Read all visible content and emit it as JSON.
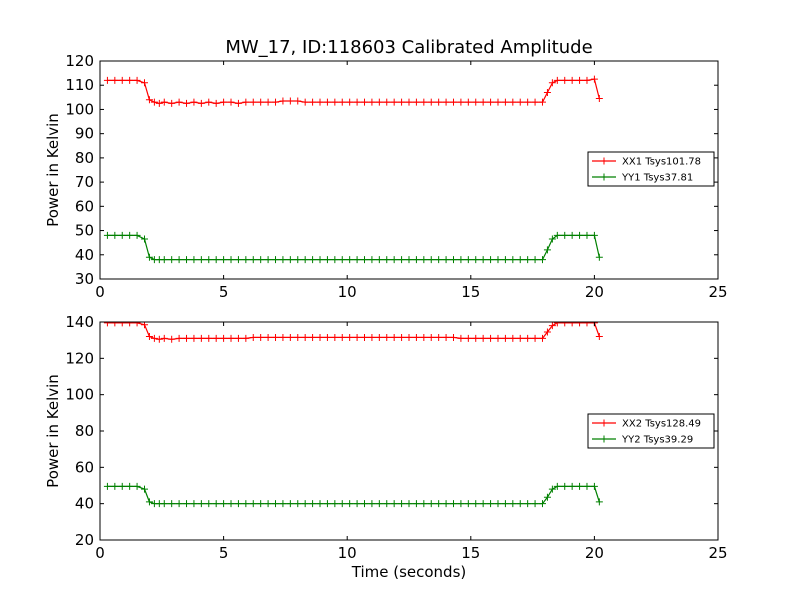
{
  "chart_data": [
    {
      "type": "line",
      "title": "MW_17, ID:118603 Calibrated Amplitude",
      "xlabel": "",
      "ylabel": "Power in Kelvin",
      "xlim": [
        0,
        25
      ],
      "ylim": [
        30,
        120
      ],
      "xticks": [
        "0",
        "5",
        "10",
        "15",
        "20",
        "25"
      ],
      "yticks": [
        "30",
        "40",
        "50",
        "60",
        "70",
        "80",
        "90",
        "100",
        "110",
        "120"
      ],
      "grid": false,
      "legend_position": "right",
      "series": [
        {
          "name": "XX1 Tsys101.78",
          "color": "#ff0000",
          "x": [
            0.3,
            0.6,
            0.9,
            1.2,
            1.5,
            1.8,
            2.0,
            2.2,
            2.4,
            2.6,
            2.9,
            3.2,
            3.5,
            3.8,
            4.1,
            4.4,
            4.7,
            5.0,
            5.3,
            5.6,
            5.9,
            6.2,
            6.5,
            6.8,
            7.1,
            7.4,
            7.7,
            8.0,
            8.3,
            8.6,
            8.9,
            9.2,
            9.5,
            9.8,
            10.1,
            10.4,
            10.7,
            11.0,
            11.3,
            11.6,
            11.9,
            12.2,
            12.5,
            12.8,
            13.1,
            13.4,
            13.7,
            14.0,
            14.3,
            14.6,
            14.9,
            15.2,
            15.5,
            15.8,
            16.1,
            16.4,
            16.7,
            17.0,
            17.3,
            17.6,
            17.9,
            18.1,
            18.3,
            18.5,
            18.8,
            19.1,
            19.4,
            19.7,
            20.0,
            20.2
          ],
          "y": [
            112,
            112,
            112,
            112,
            112,
            111,
            104,
            103,
            102.5,
            103,
            102.5,
            103,
            102.5,
            103,
            102.5,
            103,
            102.5,
            103,
            103,
            102.5,
            103,
            103,
            103,
            103,
            103,
            103.5,
            103.5,
            103.5,
            103,
            103,
            103,
            103,
            103,
            103,
            103,
            103,
            103,
            103,
            103,
            103,
            103,
            103,
            103,
            103,
            103,
            103,
            103,
            103,
            103,
            103,
            103,
            103,
            103,
            103,
            103,
            103,
            103,
            103,
            103,
            103,
            103,
            107,
            111,
            112,
            112,
            112,
            112,
            112,
            112.5,
            104.5
          ]
        },
        {
          "name": "YY1 Tsys37.81",
          "color": "#008000",
          "x": [
            0.3,
            0.6,
            0.9,
            1.2,
            1.5,
            1.8,
            2.0,
            2.2,
            2.4,
            2.6,
            2.9,
            3.2,
            3.5,
            3.8,
            4.1,
            4.4,
            4.7,
            5.0,
            5.3,
            5.6,
            5.9,
            6.2,
            6.5,
            6.8,
            7.1,
            7.4,
            7.7,
            8.0,
            8.3,
            8.6,
            8.9,
            9.2,
            9.5,
            9.8,
            10.1,
            10.4,
            10.7,
            11.0,
            11.3,
            11.6,
            11.9,
            12.2,
            12.5,
            12.8,
            13.1,
            13.4,
            13.7,
            14.0,
            14.3,
            14.6,
            14.9,
            15.2,
            15.5,
            15.8,
            16.1,
            16.4,
            16.7,
            17.0,
            17.3,
            17.6,
            17.9,
            18.1,
            18.3,
            18.5,
            18.8,
            19.1,
            19.4,
            19.7,
            20.0,
            20.2
          ],
          "y": [
            48,
            48,
            48,
            48,
            48,
            46.5,
            39,
            38,
            38,
            38,
            38,
            38,
            38,
            38,
            38,
            38,
            38,
            38,
            38,
            38,
            38,
            38,
            38,
            38,
            38,
            38,
            38,
            38,
            38,
            38,
            38,
            38,
            38,
            38,
            38,
            38,
            38,
            38,
            38,
            38,
            38,
            38,
            38,
            38,
            38,
            38,
            38,
            38,
            38,
            38,
            38,
            38,
            38,
            38,
            38,
            38,
            38,
            38,
            38,
            38,
            38,
            42,
            46.5,
            48,
            48,
            48,
            48,
            48,
            48,
            39
          ]
        }
      ]
    },
    {
      "type": "line",
      "title": "",
      "xlabel": "Time (seconds)",
      "ylabel": "Power in Kelvin",
      "xlim": [
        0,
        25
      ],
      "ylim": [
        20,
        140
      ],
      "xticks": [
        "0",
        "5",
        "10",
        "15",
        "20",
        "25"
      ],
      "yticks": [
        "20",
        "40",
        "60",
        "80",
        "100",
        "120",
        "140"
      ],
      "grid": false,
      "legend_position": "right",
      "series": [
        {
          "name": "XX2 Tsys128.49",
          "color": "#ff0000",
          "x": [
            0.3,
            0.6,
            0.9,
            1.2,
            1.5,
            1.8,
            2.0,
            2.2,
            2.4,
            2.6,
            2.9,
            3.2,
            3.5,
            3.8,
            4.1,
            4.4,
            4.7,
            5.0,
            5.3,
            5.6,
            5.9,
            6.2,
            6.5,
            6.8,
            7.1,
            7.4,
            7.7,
            8.0,
            8.3,
            8.6,
            8.9,
            9.2,
            9.5,
            9.8,
            10.1,
            10.4,
            10.7,
            11.0,
            11.3,
            11.6,
            11.9,
            12.2,
            12.5,
            12.8,
            13.1,
            13.4,
            13.7,
            14.0,
            14.3,
            14.6,
            14.9,
            15.2,
            15.5,
            15.8,
            16.1,
            16.4,
            16.7,
            17.0,
            17.3,
            17.6,
            17.9,
            18.1,
            18.3,
            18.5,
            18.8,
            19.1,
            19.4,
            19.7,
            20.0,
            20.2
          ],
          "y": [
            139.5,
            139.5,
            139.5,
            139.5,
            139.5,
            138.5,
            132,
            131,
            130.5,
            131,
            130.5,
            131,
            131,
            131,
            131,
            131,
            131,
            131,
            131,
            131,
            131,
            131.5,
            131.5,
            131.5,
            131.5,
            131.5,
            131.5,
            131.5,
            131.5,
            131.5,
            131.5,
            131.5,
            131.5,
            131.5,
            131.5,
            131.5,
            131.5,
            131.5,
            131.5,
            131.5,
            131.5,
            131.5,
            131.5,
            131.5,
            131.5,
            131.5,
            131.5,
            131.5,
            131.5,
            131,
            131,
            131,
            131,
            131,
            131,
            131,
            131,
            131,
            131,
            131,
            131,
            134.5,
            138,
            139.5,
            139.5,
            139.5,
            139.5,
            139.5,
            139.5,
            132
          ]
        },
        {
          "name": "YY2 Tsys39.29",
          "color": "#008000",
          "x": [
            0.3,
            0.6,
            0.9,
            1.2,
            1.5,
            1.8,
            2.0,
            2.2,
            2.4,
            2.6,
            2.9,
            3.2,
            3.5,
            3.8,
            4.1,
            4.4,
            4.7,
            5.0,
            5.3,
            5.6,
            5.9,
            6.2,
            6.5,
            6.8,
            7.1,
            7.4,
            7.7,
            8.0,
            8.3,
            8.6,
            8.9,
            9.2,
            9.5,
            9.8,
            10.1,
            10.4,
            10.7,
            11.0,
            11.3,
            11.6,
            11.9,
            12.2,
            12.5,
            12.8,
            13.1,
            13.4,
            13.7,
            14.0,
            14.3,
            14.6,
            14.9,
            15.2,
            15.5,
            15.8,
            16.1,
            16.4,
            16.7,
            17.0,
            17.3,
            17.6,
            17.9,
            18.1,
            18.3,
            18.5,
            18.8,
            19.1,
            19.4,
            19.7,
            20.0,
            20.2
          ],
          "y": [
            49.5,
            49.5,
            49.5,
            49.5,
            49.5,
            48,
            41,
            40,
            40,
            40,
            40,
            40,
            40,
            40,
            40,
            40,
            40,
            40,
            40,
            40,
            40,
            40,
            40,
            40,
            40,
            40,
            40,
            40,
            40,
            40,
            40,
            40,
            40,
            40,
            40,
            40,
            40,
            40,
            40,
            40,
            40,
            40,
            40,
            40,
            40,
            40,
            40,
            40,
            40,
            40,
            40,
            40,
            40,
            40,
            40,
            40,
            40,
            40,
            40,
            40,
            40,
            43.5,
            48,
            49.5,
            49.5,
            49.5,
            49.5,
            49.5,
            49.5,
            41
          ]
        }
      ]
    }
  ]
}
